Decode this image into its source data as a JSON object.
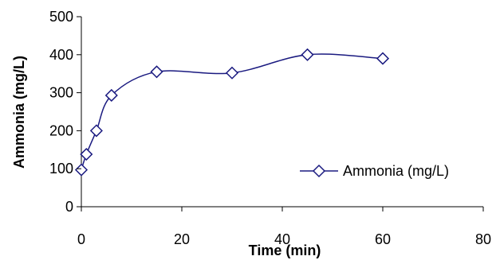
{
  "chart_data": {
    "type": "line",
    "xlabel": "Time (min)",
    "ylabel": "Ammonia (mg/L)",
    "xlim": [
      0,
      80
    ],
    "ylim": [
      0,
      500
    ],
    "xticks": [
      "0",
      "20",
      "40",
      "60",
      "80"
    ],
    "yticks": [
      "0",
      "100",
      "200",
      "300",
      "400",
      "500"
    ],
    "grid": false,
    "legend_position": "bottom-right",
    "series": [
      {
        "name": "Ammonia (mg/L)",
        "color": "#1a1a80",
        "marker": "diamond",
        "smooth": true,
        "x": [
          0,
          1,
          3,
          6,
          15,
          30,
          45,
          60
        ],
        "y": [
          97,
          138,
          200,
          293,
          355,
          352,
          400,
          390
        ]
      }
    ]
  }
}
